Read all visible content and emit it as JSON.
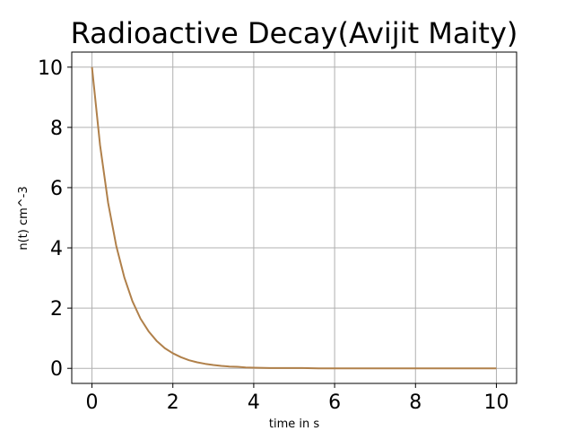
{
  "chart_data": {
    "type": "line",
    "title": "Radioactive Decay(Avijit Maity)",
    "xlabel": "time in s",
    "ylabel": "n(t) cm^-3",
    "xlim": [
      -0.5,
      10.5
    ],
    "ylim": [
      -0.5,
      10.5
    ],
    "xticks": [
      0,
      2,
      4,
      6,
      8,
      10
    ],
    "yticks": [
      0,
      2,
      4,
      6,
      8,
      10
    ],
    "grid": true,
    "series": [
      {
        "color": "#b0804a",
        "x": [
          0,
          0.2,
          0.4,
          0.6,
          0.8,
          1.0,
          1.2,
          1.4,
          1.6,
          1.8,
          2.0,
          2.2,
          2.4,
          2.6,
          2.8,
          3.0,
          3.2,
          3.4,
          3.6,
          3.8,
          4.0,
          4.4,
          4.8,
          5.2,
          5.6,
          6.0,
          6.5,
          7.0,
          7.5,
          8.0,
          8.5,
          9.0,
          9.5,
          10.0
        ],
        "y": [
          10.0,
          7.41,
          5.49,
          4.07,
          3.02,
          2.23,
          1.65,
          1.23,
          0.91,
          0.67,
          0.5,
          0.37,
          0.27,
          0.2,
          0.15,
          0.11,
          0.08,
          0.06,
          0.05,
          0.03,
          0.02,
          0.01,
          0.01,
          0.01,
          0.0,
          0.0,
          0.0,
          0.0,
          0.0,
          0.0,
          0.0,
          0.0,
          0.0,
          0.0
        ]
      }
    ]
  }
}
